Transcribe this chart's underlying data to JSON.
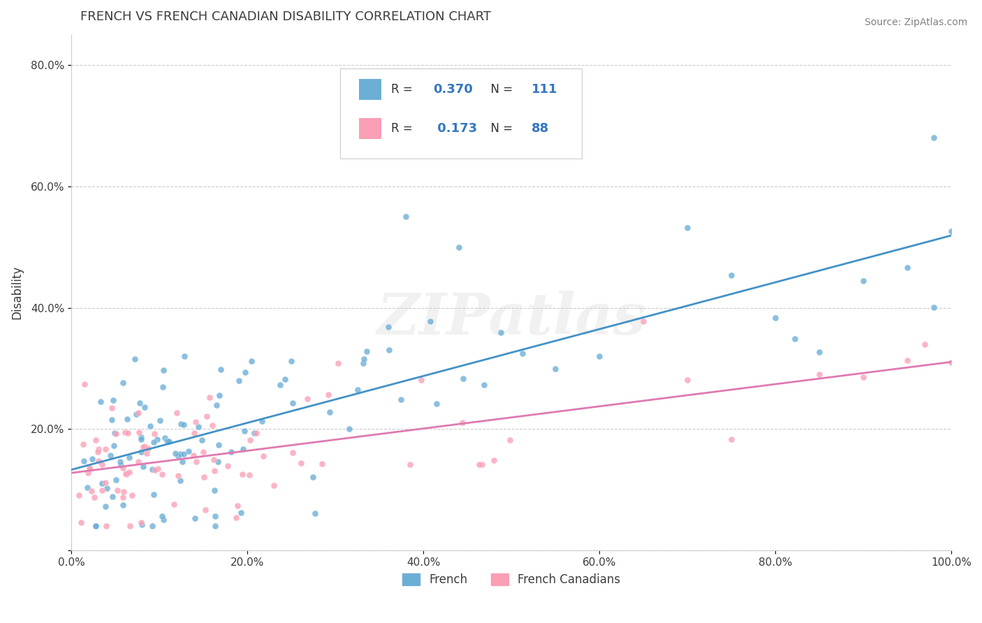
{
  "title": "FRENCH VS FRENCH CANADIAN DISABILITY CORRELATION CHART",
  "source": "Source: ZipAtlas.com",
  "ylabel": "Disability",
  "french_color": "#6baed6",
  "french_canadian_color": "#fa9fb5",
  "french_line_color": "#4292c6",
  "french_canadian_line_color": "#e07ab0",
  "french_R": 0.37,
  "french_N": 111,
  "french_canadian_R": 0.173,
  "french_canadian_N": 88,
  "xlim": [
    0.0,
    1.0
  ],
  "ylim": [
    0.0,
    0.85
  ],
  "xticks": [
    0.0,
    0.2,
    0.4,
    0.6,
    0.8,
    1.0
  ],
  "yticks": [
    0.0,
    0.2,
    0.4,
    0.6,
    0.8
  ],
  "xticklabels": [
    "0.0%",
    "20.0%",
    "40.0%",
    "60.0%",
    "80.0%",
    "100.0%"
  ],
  "yticklabels": [
    "",
    "20.0%",
    "40.0%",
    "60.0%",
    "80.0%"
  ],
  "title_color": "#3c3c3c",
  "tick_color": "#3c3c3c",
  "grid_color": "#cccccc",
  "background_color": "#ffffff",
  "watermark": "ZIPatlas",
  "legend_labels": [
    "French",
    "French Canadians"
  ]
}
